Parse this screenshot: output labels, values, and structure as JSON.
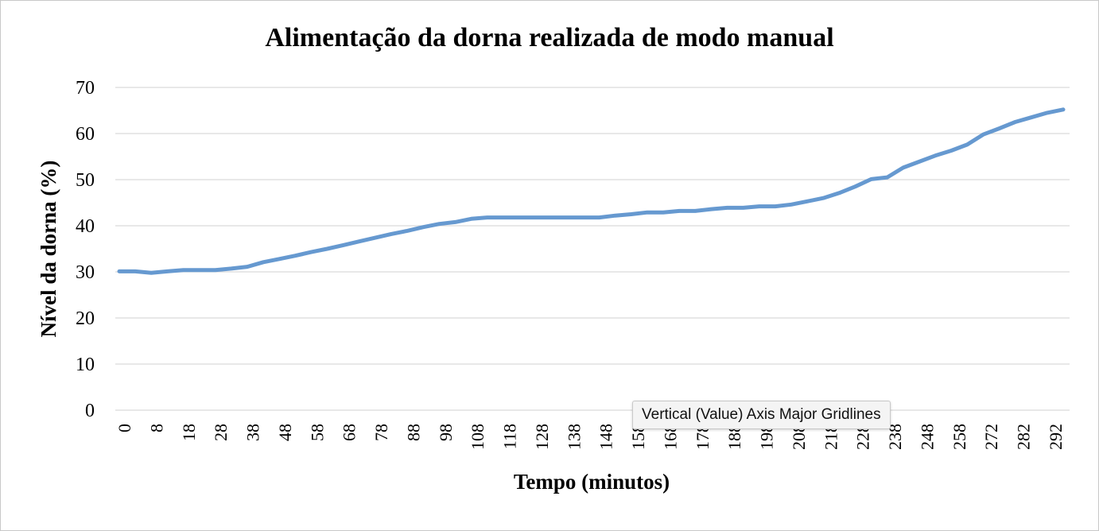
{
  "chart_data": {
    "type": "line",
    "title": "Alimentação da dorna realizada de modo manual",
    "xlabel": "Tempo (minutos)",
    "ylabel": "Nível da dorna (%)",
    "ylim": [
      0,
      70
    ],
    "y_ticks": [
      "0",
      "10",
      "20",
      "30",
      "40",
      "50",
      "60",
      "70"
    ],
    "x_tick_labels": [
      "0",
      "8",
      "18",
      "28",
      "38",
      "48",
      "58",
      "68",
      "78",
      "88",
      "98",
      "108",
      "118",
      "128",
      "138",
      "148",
      "158",
      "168",
      "178",
      "188",
      "198",
      "208",
      "218",
      "228",
      "238",
      "248",
      "258",
      "272",
      "282",
      "292"
    ],
    "grid": "horizontal major gridlines",
    "legend": "none",
    "line_color": "#6699D0",
    "series": [
      {
        "values": [
          30.1,
          30.1,
          29.8,
          30.1,
          30.4,
          30.4,
          30.4,
          30.7,
          31.1,
          32.1,
          32.8,
          33.5,
          34.3,
          35.0,
          35.8,
          36.6,
          37.4,
          38.2,
          38.9,
          39.7,
          40.4,
          40.8,
          41.5,
          41.8,
          41.8,
          41.8,
          41.8,
          41.8,
          41.8,
          41.8,
          41.8,
          42.2,
          42.5,
          42.9,
          42.9,
          43.2,
          43.2,
          43.6,
          43.9,
          43.9,
          44.2,
          44.2,
          44.6,
          45.3,
          46.0,
          47.1,
          48.5,
          50.1,
          50.5,
          52.6,
          53.9,
          55.2,
          56.3,
          57.6,
          59.8,
          61.1,
          62.5,
          63.5,
          64.5,
          65.2
        ]
      }
    ]
  },
  "tooltip": {
    "text": "Vertical (Value) Axis Major Gridlines"
  }
}
